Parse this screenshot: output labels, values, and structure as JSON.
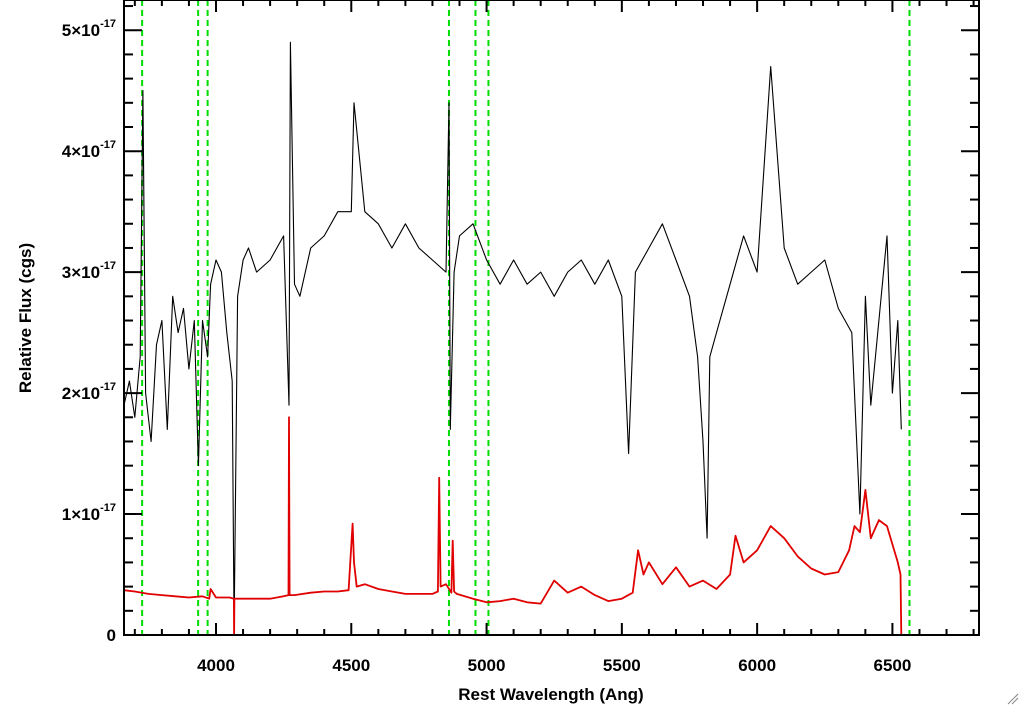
{
  "chart_data": {
    "type": "line",
    "xlabel": "Rest Wavelength (Ang)",
    "ylabel": "Relative Flux (cgs)",
    "xlim": [
      3660,
      6820
    ],
    "ylim": [
      0,
      5.25e-17
    ],
    "x_ticks": [
      4000,
      4500,
      5000,
      5500,
      6000,
      6500
    ],
    "y_ticks": [
      {
        "value": 0,
        "label": "0"
      },
      {
        "value": 1e-17,
        "mantissa": "1×10",
        "exponent": "-17"
      },
      {
        "value": 2e-17,
        "mantissa": "2×10",
        "exponent": "-17"
      },
      {
        "value": 3e-17,
        "mantissa": "3×10",
        "exponent": "-17"
      },
      {
        "value": 4e-17,
        "mantissa": "4×10",
        "exponent": "-17"
      },
      {
        "value": 5e-17,
        "mantissa": "5×10",
        "exponent": "-17"
      }
    ],
    "reference_lines": [
      3727,
      3934,
      3969,
      4861,
      4959,
      5007,
      6563
    ],
    "series": [
      {
        "color": "#000000",
        "x": [
          3660,
          3680,
          3700,
          3720,
          3730,
          3740,
          3760,
          3780,
          3800,
          3820,
          3840,
          3860,
          3880,
          3900,
          3920,
          3935,
          3950,
          3969,
          3980,
          4000,
          4020,
          4040,
          4060,
          4067,
          4080,
          4100,
          4120,
          4150,
          4200,
          4250,
          4270,
          4275,
          4290,
          4310,
          4350,
          4400,
          4450,
          4500,
          4510,
          4550,
          4600,
          4650,
          4700,
          4750,
          4800,
          4850,
          4861,
          4866,
          4880,
          4900,
          4950,
          5000,
          5050,
          5100,
          5150,
          5200,
          5250,
          5300,
          5350,
          5400,
          5450,
          5500,
          5525,
          5550,
          5600,
          5650,
          5700,
          5750,
          5780,
          5800,
          5815,
          5825,
          5850,
          5900,
          5950,
          6000,
          6050,
          6100,
          6150,
          6200,
          6250,
          6300,
          6350,
          6380,
          6400,
          6420,
          6450,
          6480,
          6500,
          6520,
          6533
        ],
        "y": [
          1.9e-17,
          2.1e-17,
          1.8e-17,
          2.3e-17,
          4.5e-17,
          2e-17,
          1.6e-17,
          2.4e-17,
          2.6e-17,
          1.7e-17,
          2.8e-17,
          2.5e-17,
          2.7e-17,
          2.2e-17,
          2.6e-17,
          1.4e-17,
          2.6e-17,
          2.3e-17,
          2.9e-17,
          3.1e-17,
          3e-17,
          2.5e-17,
          2.1e-17,
          5e-19,
          2.8e-17,
          3.1e-17,
          3.2e-17,
          3e-17,
          3.1e-17,
          3.3e-17,
          1.9e-17,
          4.9e-17,
          2.9e-17,
          2.8e-17,
          3.2e-17,
          3.3e-17,
          3.5e-17,
          3.5e-17,
          4.4e-17,
          3.5e-17,
          3.4e-17,
          3.2e-17,
          3.4e-17,
          3.2e-17,
          3.1e-17,
          3e-17,
          4.4e-17,
          1.7e-17,
          3e-17,
          3.3e-17,
          3.4e-17,
          3.1e-17,
          2.9e-17,
          3.1e-17,
          2.9e-17,
          3e-17,
          2.8e-17,
          3e-17,
          3.1e-17,
          2.9e-17,
          3.1e-17,
          2.8e-17,
          1.5e-17,
          3e-17,
          3.2e-17,
          3.4e-17,
          3.1e-17,
          2.8e-17,
          2.3e-17,
          1.6e-17,
          8e-18,
          2.3e-17,
          2.5e-17,
          2.9e-17,
          3.3e-17,
          3e-17,
          4.7e-17,
          3.2e-17,
          2.9e-17,
          3e-17,
          3.1e-17,
          2.7e-17,
          2.5e-17,
          1e-17,
          2.8e-17,
          1.9e-17,
          2.6e-17,
          3.3e-17,
          2e-17,
          2.6e-17,
          1.7e-17
        ]
      },
      {
        "color": "#e00000",
        "x": [
          3660,
          3700,
          3750,
          3800,
          3850,
          3900,
          3950,
          3975,
          3980,
          4000,
          4050,
          4066,
          4067,
          4068,
          4100,
          4150,
          4200,
          4250,
          4268,
          4270,
          4272,
          4290,
          4350,
          4400,
          4450,
          4490,
          4505,
          4510,
          4520,
          4550,
          4600,
          4650,
          4700,
          4750,
          4800,
          4820,
          4825,
          4830,
          4850,
          4870,
          4875,
          4880,
          4890,
          4950,
          5000,
          5050,
          5100,
          5150,
          5200,
          5250,
          5300,
          5350,
          5400,
          5450,
          5500,
          5540,
          5560,
          5580,
          5600,
          5650,
          5700,
          5750,
          5800,
          5850,
          5900,
          5920,
          5950,
          6000,
          6050,
          6100,
          6150,
          6200,
          6250,
          6300,
          6340,
          6360,
          6380,
          6400,
          6420,
          6450,
          6480,
          6500,
          6520,
          6530,
          6533,
          6540,
          6820
        ],
        "y": [
          3.7e-18,
          3.6e-18,
          3.4e-18,
          3.3e-18,
          3.2e-18,
          3.1e-18,
          3.2e-18,
          3e-18,
          3.8e-18,
          3.1e-18,
          3.1e-18,
          3e-18,
          -2e-18,
          3e-18,
          3e-18,
          3e-18,
          3e-18,
          3.2e-18,
          3.3e-18,
          1.8e-17,
          3.3e-18,
          3.3e-18,
          3.5e-18,
          3.6e-18,
          3.6e-18,
          3.7e-18,
          9.2e-18,
          6e-18,
          4e-18,
          4.2e-18,
          3.8e-18,
          3.6e-18,
          3.4e-18,
          3.4e-18,
          3.4e-18,
          3.6e-18,
          1.3e-17,
          4e-18,
          4.2e-18,
          3.5e-18,
          7.8e-18,
          3.6e-18,
          3.4e-18,
          3e-18,
          2.7e-18,
          2.8e-18,
          3e-18,
          2.7e-18,
          2.6e-18,
          4.5e-18,
          3.5e-18,
          4e-18,
          3.3e-18,
          2.8e-18,
          3e-18,
          3.5e-18,
          7e-18,
          5e-18,
          6e-18,
          4.2e-18,
          5.6e-18,
          4e-18,
          4.5e-18,
          3.8e-18,
          5e-18,
          8.2e-18,
          6e-18,
          7e-18,
          9e-18,
          8e-18,
          6.5e-18,
          5.5e-18,
          5e-18,
          5.2e-18,
          7e-18,
          9e-18,
          8.5e-18,
          1.2e-17,
          8e-18,
          9.5e-18,
          9e-18,
          7.5e-18,
          6e-18,
          5e-18,
          -2e-19,
          -2e-19,
          -2e-19
        ]
      }
    ]
  }
}
